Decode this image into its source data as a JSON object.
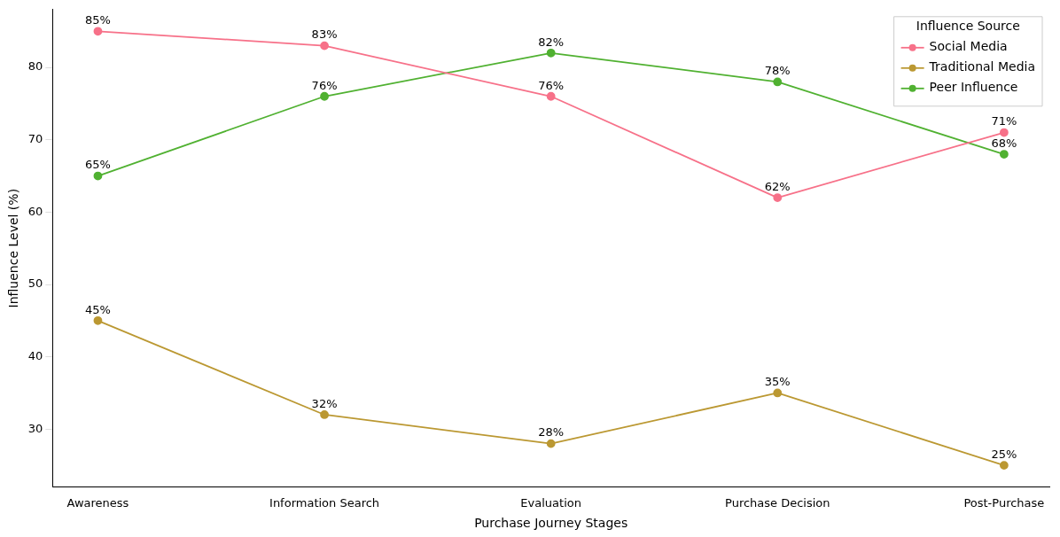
{
  "chart_data": {
    "type": "line",
    "xlabel": "Purchase Journey Stages",
    "ylabel": "Influence Level (%)",
    "legend_title": "Influence Source",
    "legend": "top right",
    "marker": "circle",
    "line_style": "solid",
    "grid": false,
    "categories": [
      "Awareness",
      "Information Search",
      "Evaluation",
      "Purchase Decision",
      "Post-Purchase"
    ],
    "ylim": [
      22,
      88
    ],
    "yticks": [
      30,
      40,
      50,
      60,
      70,
      80
    ],
    "series": [
      {
        "name": "Social Media",
        "color": "#f77189",
        "values": [
          85,
          83,
          76,
          62,
          71
        ],
        "value_labels": [
          "85%",
          "83%",
          "76%",
          "62%",
          "71%"
        ]
      },
      {
        "name": "Traditional Media",
        "color": "#bb9832",
        "values": [
          45,
          32,
          28,
          35,
          25
        ],
        "value_labels": [
          "45%",
          "32%",
          "28%",
          "35%",
          "25%"
        ]
      },
      {
        "name": "Peer Influence",
        "color": "#50b131",
        "values": [
          65,
          76,
          82,
          78,
          68
        ],
        "value_labels": [
          "65%",
          "76%",
          "82%",
          "78%",
          "68%"
        ]
      }
    ]
  }
}
